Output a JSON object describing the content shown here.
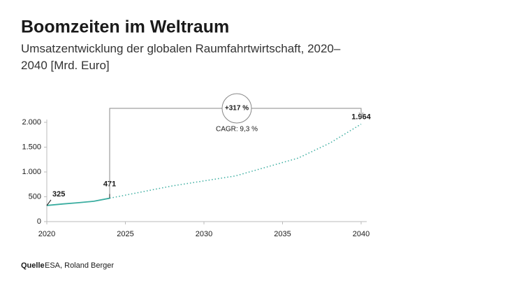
{
  "chart_data": {
    "type": "line",
    "title": "Boomzeiten im Weltraum",
    "subtitle": "Umsatzentwicklung der globalen Raumfahrtwirtschaft, 2020–2040 [Mrd. Euro]",
    "x": [
      2020,
      2021,
      2022,
      2023,
      2024,
      2028,
      2032,
      2036,
      2038,
      2040
    ],
    "series": [
      {
        "color": "#3aada0",
        "dash": false,
        "values": [
          325,
          355,
          380,
          410,
          471,
          null,
          null,
          null,
          null,
          null
        ],
        "value_labels": [
          "325",
          null,
          null,
          null,
          "471",
          null,
          null,
          null,
          null,
          null
        ]
      },
      {
        "color": "#3aada0",
        "dash": true,
        "values": [
          null,
          null,
          null,
          null,
          471,
          720,
          920,
          1280,
          1580,
          1964
        ],
        "value_labels": [
          null,
          null,
          null,
          null,
          null,
          null,
          null,
          null,
          null,
          "1.964"
        ]
      }
    ],
    "xlim": [
      2020,
      2040
    ],
    "xticks": [
      2020,
      2025,
      2030,
      2035,
      2040
    ],
    "ylim": [
      0,
      2000
    ],
    "yticks": [
      0,
      500,
      {
        "value": 1000,
        "label": "1.000"
      },
      {
        "value": 1500,
        "label": "1.500"
      },
      {
        "value": 2000,
        "label": "2.000"
      }
    ],
    "annotations": [
      "+317 %",
      "CAGR: 9,3 %"
    ],
    "source_label": "Quelle",
    "source": "ESA, Roland Berger"
  }
}
